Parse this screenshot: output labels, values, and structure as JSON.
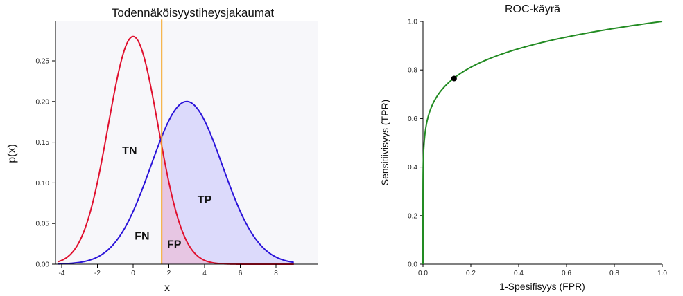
{
  "chart_data": [
    {
      "type": "line",
      "title": "Todennäköisyystiheysjakaumat",
      "xlabel": "x",
      "ylabel": "p(x)",
      "xlim": [
        -4.2,
        9
      ],
      "ylim": [
        0,
        0.3
      ],
      "x_ticks": [
        "-4",
        "-2",
        "0",
        "2",
        "4",
        "6",
        "8"
      ],
      "y_ticks": [
        "0.00",
        "0.05",
        "0.10",
        "0.15",
        "0.20",
        "0.25"
      ],
      "series": [
        {
          "distribution": "normal",
          "mean": 0,
          "sd": 1.4,
          "peak": 0.28,
          "color": "#e0102e"
        },
        {
          "distribution": "normal",
          "mean": 3,
          "sd": 2.0,
          "peak": 0.2,
          "color": "#2a13d9"
        }
      ],
      "threshold": {
        "x": 1.6,
        "color": "#f5a623"
      },
      "fill_colors": {
        "tp": "#dcdafb",
        "fp": "#e7c6e3"
      },
      "regions": [
        {
          "label": "TN",
          "x": -0.2,
          "y": 0.135
        },
        {
          "label": "FN",
          "x": 0.5,
          "y": 0.03
        },
        {
          "label": "FP",
          "x": 2.3,
          "y": 0.02
        },
        {
          "label": "TP",
          "x": 4.0,
          "y": 0.075
        }
      ]
    },
    {
      "type": "line",
      "title": "ROC-käyrä",
      "xlabel": "1-Spesifisyys (FPR)",
      "ylabel": "Sensitiivisyys (TPR)",
      "xlim": [
        0,
        1
      ],
      "ylim": [
        0,
        1
      ],
      "x_ticks": [
        "0.0",
        "0.2",
        "0.4",
        "0.6",
        "0.8",
        "1.0"
      ],
      "y_ticks": [
        "0.0",
        "0.2",
        "0.4",
        "0.6",
        "0.8",
        "1.0"
      ],
      "curve_color": "#228b22",
      "operating_point": {
        "x": 0.13,
        "y": 0.765
      }
    }
  ]
}
